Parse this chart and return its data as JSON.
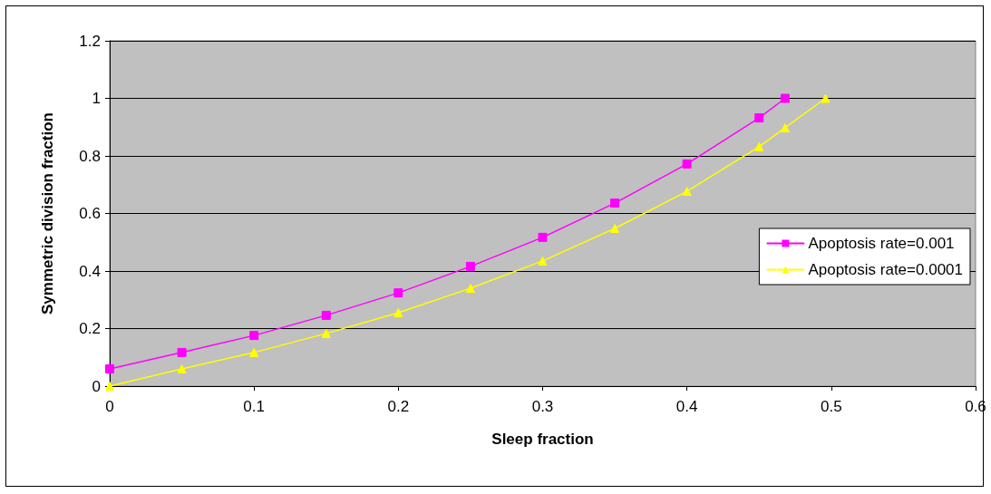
{
  "chart_data": {
    "type": "line",
    "xlabel": "Sleep fraction",
    "ylabel": "Symmetric division fraction",
    "xlim": [
      0,
      0.6
    ],
    "xticks": [
      0,
      0.1,
      0.2,
      0.3,
      0.4,
      0.5,
      0.6
    ],
    "ylim": [
      0,
      1.2
    ],
    "yticks": [
      0,
      0.2,
      0.4,
      0.6,
      0.8,
      1,
      1.2
    ],
    "grid": "y",
    "legend": "right",
    "line_style": "solid",
    "series": [
      {
        "name": "Apoptosis rate=0.001",
        "color": "#ff00ff",
        "marker": "square",
        "x": [
          0,
          0.05,
          0.1,
          0.15,
          0.2,
          0.25,
          0.3,
          0.35,
          0.4,
          0.45,
          0.468
        ],
        "values": [
          0.06,
          0.117,
          0.176,
          0.246,
          0.324,
          0.416,
          0.517,
          0.636,
          0.772,
          0.932,
          1.0
        ]
      },
      {
        "name": "Apoptosis rate=0.0001",
        "color": "#ffff00",
        "marker": "triangle",
        "x": [
          0,
          0.05,
          0.1,
          0.15,
          0.2,
          0.25,
          0.3,
          0.35,
          0.4,
          0.45,
          0.468,
          0.496
        ],
        "values": [
          0.0,
          0.06,
          0.117,
          0.183,
          0.255,
          0.34,
          0.435,
          0.548,
          0.677,
          0.832,
          0.898,
          1.0
        ]
      }
    ]
  }
}
